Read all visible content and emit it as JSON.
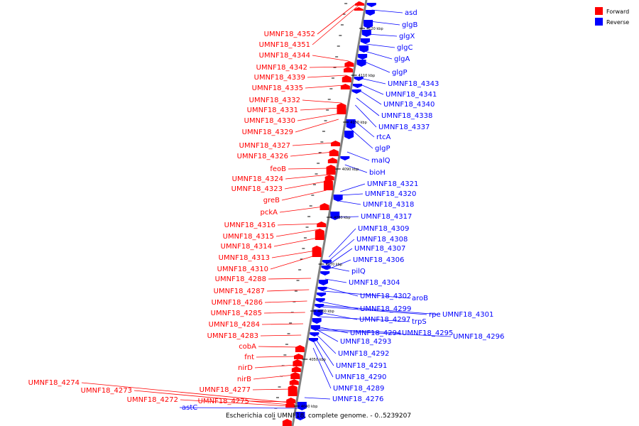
{
  "caption": "Escherichia coli UMNF18, complete genome. - 0..5239207",
  "legend": [
    {
      "label": "Forward",
      "color": "#ff0000"
    },
    {
      "label": "Reverse",
      "color": "#0000ff"
    }
  ],
  "forward_labels": [
    "UMNF18_4352",
    "UMNF18_4351",
    "UMNF18_4344",
    "UMNF18_4342",
    "UMNF18_4339",
    "UMNF18_4335",
    "UMNF18_4332",
    "UMNF18_4331",
    "UMNF18_4330",
    "UMNF18_4329",
    "UMNF18_4327",
    "UMNF18_4326",
    "feoB",
    "UMNF18_4324",
    "UMNF18_4323",
    "greB",
    "pckA",
    "UMNF18_4316",
    "UMNF18_4315",
    "UMNF18_4314",
    "UMNF18_4313",
    "UMNF18_4310",
    "UMNF18_4288",
    "UMNF18_4287",
    "UMNF18_4286",
    "UMNF18_4285",
    "UMNF18_4284",
    "UMNF18_4283",
    "cobA",
    "fnt",
    "nirD",
    "nirB",
    "UMNF18_4277",
    "UMNF18_4274",
    "UMNF18_4273",
    "UMNF18_4272",
    "UMNF18_4275"
  ],
  "reverse_labels": [
    "asd",
    "glgB",
    "glgX",
    "glgC",
    "glgA",
    "glgP",
    "UMNF18_4343",
    "UMNF18_4341",
    "UMNF18_4340",
    "UMNF18_4338",
    "UMNF18_4337",
    "rtcA",
    "glgP",
    "malQ",
    "bioH",
    "UMNF18_4321",
    "UMNF18_4320",
    "UMNF18_4318",
    "UMNF18_4317",
    "UMNF18_4309",
    "UMNF18_4308",
    "UMNF18_4307",
    "UMNF18_4306",
    "pilQ",
    "UMNF18_4304",
    "UMNF18_4302",
    "aroB",
    "UMNF18_4299",
    "rpe",
    "UMNF18_4301",
    "UMNF18_4297",
    "trpS",
    "UMNF18_4294",
    "UMNF18_4295",
    "UMNF18_4296",
    "UMNF18_4293",
    "UMNF18_4292",
    "UMNF18_4291",
    "UMNF18_4290",
    "UMNF18_4289",
    "UMNF18_4276",
    "astC"
  ],
  "ticks": [
    "4120 kbp",
    "4110 kbp",
    "4100 kbp",
    "4090 kbp",
    "4080 kbp",
    "4070 kbp",
    "4060 kbp",
    "4050 kbp",
    "4040 kbp"
  ]
}
